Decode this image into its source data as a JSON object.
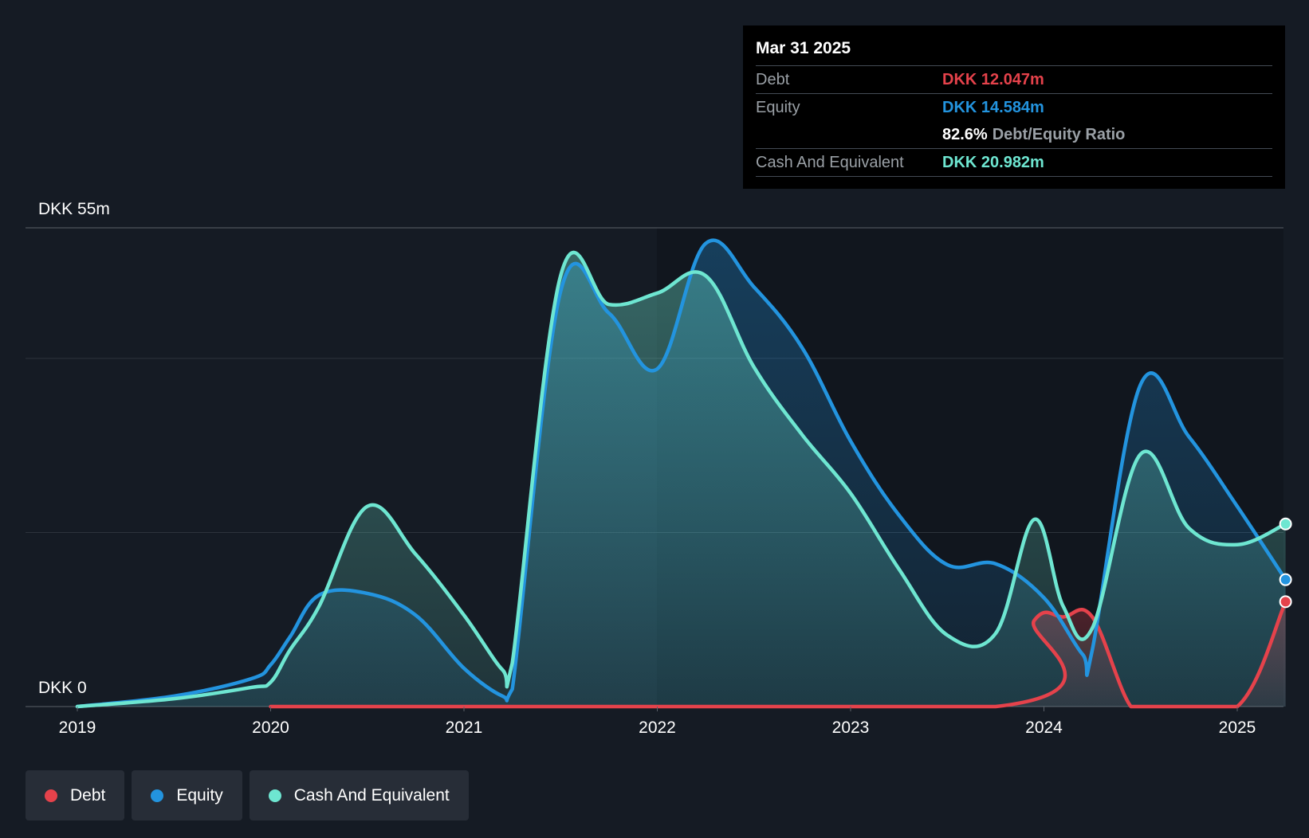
{
  "tooltip": {
    "date": "Mar 31 2025",
    "debt_label": "Debt",
    "debt_value": "DKK 12.047m",
    "equity_label": "Equity",
    "equity_value": "DKK 14.584m",
    "ratio_value": "82.6%",
    "ratio_label": "Debt/Equity Ratio",
    "cash_label": "Cash And Equivalent",
    "cash_value": "DKK 20.982m"
  },
  "colors": {
    "background": "#151b24",
    "debt": "#e5424b",
    "equity": "#2394df",
    "cash": "#6ee6d1"
  },
  "legend": [
    {
      "name": "Debt",
      "color": "#e5424b"
    },
    {
      "name": "Equity",
      "color": "#2394df"
    },
    {
      "name": "Cash And Equivalent",
      "color": "#6ee6d1"
    }
  ],
  "chart_data": {
    "type": "area",
    "ylabel_top": "DKK 55m",
    "ylabel_bottom": "DKK 0",
    "ylim": [
      0,
      55
    ],
    "xlim": [
      2019,
      2025.25
    ],
    "x_ticks": [
      "2019",
      "2020",
      "2021",
      "2022",
      "2023",
      "2024",
      "2025"
    ],
    "grid": true,
    "legend_position": "bottom-left",
    "series": [
      {
        "name": "Debt",
        "x": [
          2020.0,
          2023.75,
          2023.95,
          2024.1,
          2024.25,
          2024.45,
          2024.6,
          2025.0,
          2025.25
        ],
        "values": [
          0,
          0,
          9.9,
          10.3,
          10.3,
          0,
          0,
          0,
          12.05
        ]
      },
      {
        "name": "Equity",
        "x": [
          2019.0,
          2019.5,
          2019.9,
          2020.0,
          2020.1,
          2020.25,
          2020.5,
          2020.75,
          2021.0,
          2021.2,
          2021.25,
          2021.5,
          2021.75,
          2022.0,
          2022.25,
          2022.5,
          2022.75,
          2023.0,
          2023.25,
          2023.5,
          2023.75,
          2024.0,
          2024.2,
          2024.25,
          2024.5,
          2024.75,
          2025.0,
          2025.25
        ],
        "values": [
          0,
          1.2,
          3.2,
          4.8,
          8.0,
          12.8,
          13.0,
          10.5,
          4.4,
          1.2,
          2.0,
          47.7,
          45.2,
          38.8,
          53.2,
          48.2,
          41.2,
          30.5,
          22.0,
          16.3,
          16.4,
          12.5,
          6.0,
          6.5,
          37.0,
          31.0,
          23.0,
          14.58
        ]
      },
      {
        "name": "Cash And Equivalent",
        "x": [
          2019.0,
          2019.5,
          2019.9,
          2020.0,
          2020.1,
          2020.25,
          2020.5,
          2020.75,
          2021.0,
          2021.2,
          2021.25,
          2021.5,
          2021.75,
          2022.0,
          2022.25,
          2022.5,
          2022.75,
          2023.0,
          2023.25,
          2023.5,
          2023.75,
          2023.95,
          2024.1,
          2024.25,
          2024.5,
          2024.75,
          2025.0,
          2025.25
        ],
        "values": [
          0,
          0.9,
          2.2,
          2.8,
          6.5,
          11.5,
          23.0,
          17.5,
          10.5,
          4.2,
          5.0,
          49.5,
          46.2,
          47.5,
          49.5,
          39.0,
          31.2,
          24.5,
          15.8,
          8.2,
          8.4,
          21.5,
          11.5,
          9.0,
          29.0,
          20.5,
          18.6,
          20.98
        ]
      }
    ]
  }
}
